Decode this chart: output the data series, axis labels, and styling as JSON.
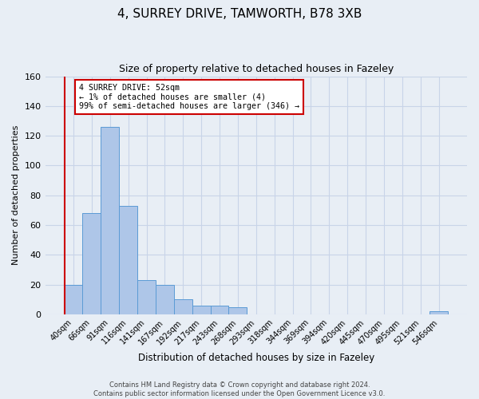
{
  "title_line1": "4, SURREY DRIVE, TAMWORTH, B78 3XB",
  "title_line2": "Size of property relative to detached houses in Fazeley",
  "xlabel": "Distribution of detached houses by size in Fazeley",
  "ylabel": "Number of detached properties",
  "bar_labels": [
    "40sqm",
    "66sqm",
    "91sqm",
    "116sqm",
    "141sqm",
    "167sqm",
    "192sqm",
    "217sqm",
    "243sqm",
    "268sqm",
    "293sqm",
    "318sqm",
    "344sqm",
    "369sqm",
    "394sqm",
    "420sqm",
    "445sqm",
    "470sqm",
    "495sqm",
    "521sqm",
    "546sqm"
  ],
  "bar_values": [
    20,
    68,
    126,
    73,
    23,
    20,
    10,
    6,
    6,
    5,
    0,
    0,
    0,
    0,
    0,
    0,
    0,
    0,
    0,
    0,
    2
  ],
  "bar_color": "#aec6e8",
  "bar_edge_color": "#5b9bd5",
  "highlight_color": "#cc0000",
  "ylim": [
    0,
    160
  ],
  "yticks": [
    0,
    20,
    40,
    60,
    80,
    100,
    120,
    140,
    160
  ],
  "annotation_title": "4 SURREY DRIVE: 52sqm",
  "annotation_line1": "← 1% of detached houses are smaller (4)",
  "annotation_line2": "99% of semi-detached houses are larger (346) →",
  "annotation_box_color": "#ffffff",
  "annotation_box_edge": "#cc0000",
  "grid_color": "#c8d4e8",
  "bg_color": "#e8eef5",
  "footer_line1": "Contains HM Land Registry data © Crown copyright and database right 2024.",
  "footer_line2": "Contains public sector information licensed under the Open Government Licence v3.0."
}
